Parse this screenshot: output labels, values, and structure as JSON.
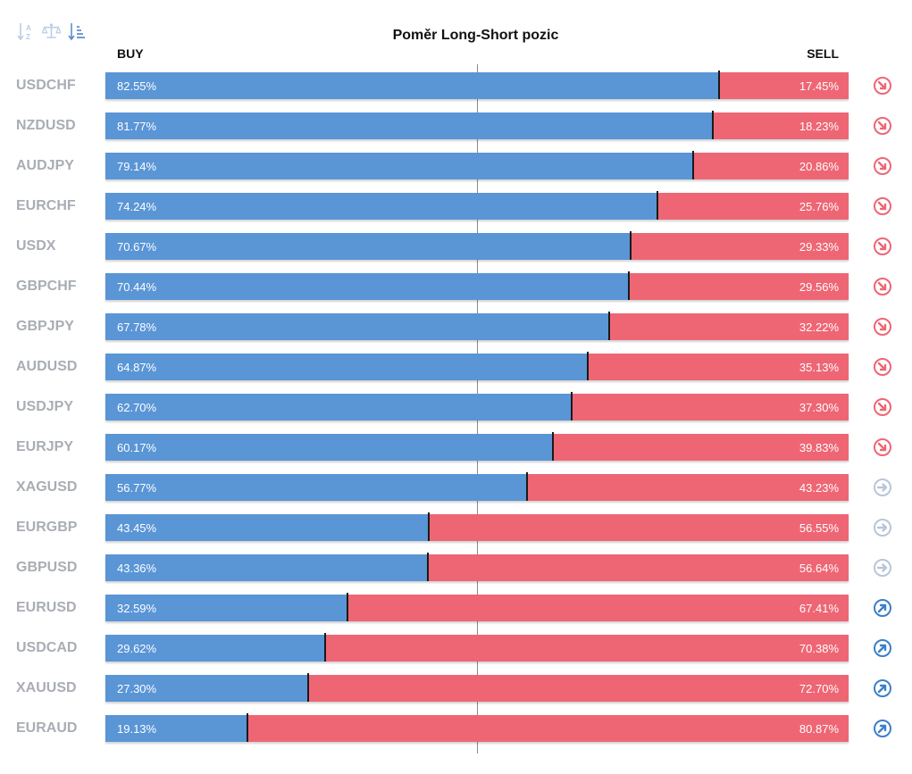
{
  "title": "Poměr Long-Short pozic",
  "buy_label": "BUY",
  "sell_label": "SELL",
  "toolbar": [
    {
      "icon": "sort-alphabetical-icon"
    },
    {
      "icon": "balance-scale-icon"
    },
    {
      "icon": "sort-descending-icon"
    }
  ],
  "colors": {
    "buy": "#5a95d6",
    "sell": "#ee6674",
    "down": "#ee6674",
    "neutral": "#b9c5d8",
    "up": "#3b80c8"
  },
  "rows": [
    {
      "symbol": "USDCHF",
      "buy_pct": "82.55%",
      "sell_pct": "17.45%",
      "signal": "down"
    },
    {
      "symbol": "NZDUSD",
      "buy_pct": "81.77%",
      "sell_pct": "18.23%",
      "signal": "down"
    },
    {
      "symbol": "AUDJPY",
      "buy_pct": "79.14%",
      "sell_pct": "20.86%",
      "signal": "down"
    },
    {
      "symbol": "EURCHF",
      "buy_pct": "74.24%",
      "sell_pct": "25.76%",
      "signal": "down"
    },
    {
      "symbol": "USDX",
      "buy_pct": "70.67%",
      "sell_pct": "29.33%",
      "signal": "down"
    },
    {
      "symbol": "GBPCHF",
      "buy_pct": "70.44%",
      "sell_pct": "29.56%",
      "signal": "down"
    },
    {
      "symbol": "GBPJPY",
      "buy_pct": "67.78%",
      "sell_pct": "32.22%",
      "signal": "down"
    },
    {
      "symbol": "AUDUSD",
      "buy_pct": "64.87%",
      "sell_pct": "35.13%",
      "signal": "down"
    },
    {
      "symbol": "USDJPY",
      "buy_pct": "62.70%",
      "sell_pct": "37.30%",
      "signal": "down"
    },
    {
      "symbol": "EURJPY",
      "buy_pct": "60.17%",
      "sell_pct": "39.83%",
      "signal": "down"
    },
    {
      "symbol": "XAGUSD",
      "buy_pct": "56.77%",
      "sell_pct": "43.23%",
      "signal": "neutral"
    },
    {
      "symbol": "EURGBP",
      "buy_pct": "43.45%",
      "sell_pct": "56.55%",
      "signal": "neutral"
    },
    {
      "symbol": "GBPUSD",
      "buy_pct": "43.36%",
      "sell_pct": "56.64%",
      "signal": "neutral"
    },
    {
      "symbol": "EURUSD",
      "buy_pct": "32.59%",
      "sell_pct": "67.41%",
      "signal": "up"
    },
    {
      "symbol": "USDCAD",
      "buy_pct": "29.62%",
      "sell_pct": "70.38%",
      "signal": "up"
    },
    {
      "symbol": "XAUUSD",
      "buy_pct": "27.30%",
      "sell_pct": "72.70%",
      "signal": "up"
    },
    {
      "symbol": "EURAUD",
      "buy_pct": "19.13%",
      "sell_pct": "80.87%",
      "signal": "up"
    }
  ],
  "chart_data": {
    "type": "bar",
    "title": "Poměr Long-Short pozic",
    "categories": [
      "USDCHF",
      "NZDUSD",
      "AUDJPY",
      "EURCHF",
      "USDX",
      "GBPCHF",
      "GBPJPY",
      "AUDUSD",
      "USDJPY",
      "EURJPY",
      "XAGUSD",
      "EURGBP",
      "GBPUSD",
      "EURUSD",
      "USDCAD",
      "XAUUSD",
      "EURAUD"
    ],
    "series": [
      {
        "name": "BUY",
        "values": [
          82.55,
          81.77,
          79.14,
          74.24,
          70.67,
          70.44,
          67.78,
          64.87,
          62.7,
          60.17,
          56.77,
          43.45,
          43.36,
          32.59,
          29.62,
          27.3,
          19.13
        ]
      },
      {
        "name": "SELL",
        "values": [
          17.45,
          18.23,
          20.86,
          25.76,
          29.33,
          29.56,
          32.22,
          35.13,
          37.3,
          39.83,
          43.23,
          56.55,
          56.64,
          67.41,
          70.38,
          72.7,
          80.87
        ]
      }
    ],
    "xlim": [
      0,
      100
    ],
    "stacked": true,
    "orientation": "horizontal"
  }
}
